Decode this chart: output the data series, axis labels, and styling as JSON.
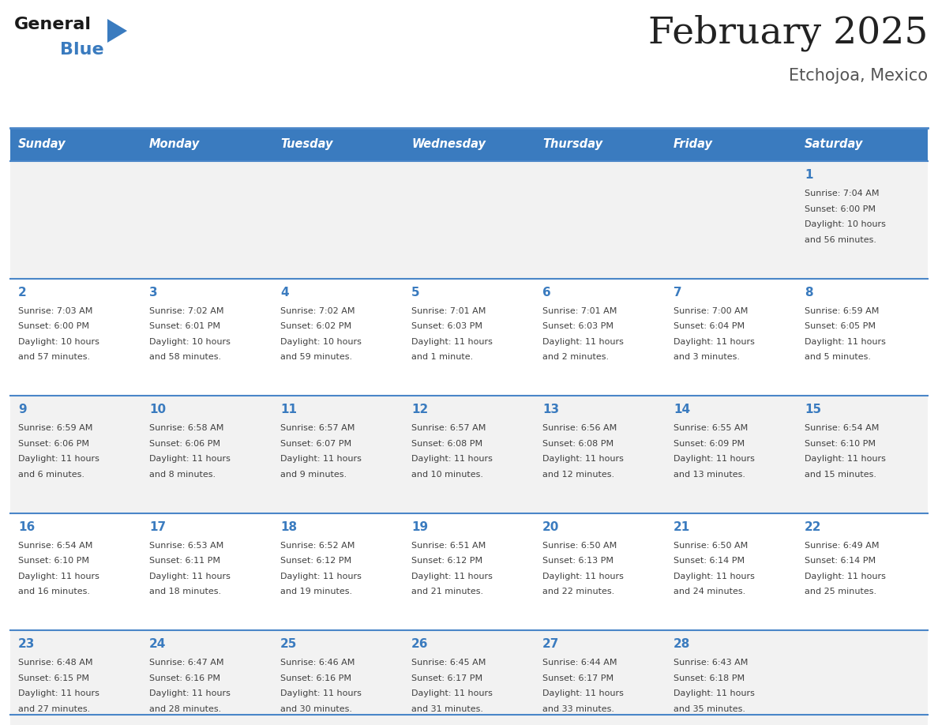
{
  "title": "February 2025",
  "subtitle": "Etchojoa, Mexico",
  "days_of_week": [
    "Sunday",
    "Monday",
    "Tuesday",
    "Wednesday",
    "Thursday",
    "Friday",
    "Saturday"
  ],
  "header_bg": "#3a7bbf",
  "header_text": "#ffffff",
  "cell_bg_odd": "#f2f2f2",
  "cell_bg_even": "#ffffff",
  "day_num_color": "#3a7bbf",
  "text_color": "#404040",
  "line_color": "#4a86c8",
  "title_color": "#222222",
  "subtitle_color": "#555555",
  "calendar_data": [
    [
      null,
      null,
      null,
      null,
      null,
      null,
      {
        "day": 1,
        "sunrise": "7:04 AM",
        "sunset": "6:00 PM",
        "daylight": "10 hours",
        "daylight2": "and 56 minutes."
      }
    ],
    [
      {
        "day": 2,
        "sunrise": "7:03 AM",
        "sunset": "6:00 PM",
        "daylight": "10 hours",
        "daylight2": "and 57 minutes."
      },
      {
        "day": 3,
        "sunrise": "7:02 AM",
        "sunset": "6:01 PM",
        "daylight": "10 hours",
        "daylight2": "and 58 minutes."
      },
      {
        "day": 4,
        "sunrise": "7:02 AM",
        "sunset": "6:02 PM",
        "daylight": "10 hours",
        "daylight2": "and 59 minutes."
      },
      {
        "day": 5,
        "sunrise": "7:01 AM",
        "sunset": "6:03 PM",
        "daylight": "11 hours",
        "daylight2": "and 1 minute."
      },
      {
        "day": 6,
        "sunrise": "7:01 AM",
        "sunset": "6:03 PM",
        "daylight": "11 hours",
        "daylight2": "and 2 minutes."
      },
      {
        "day": 7,
        "sunrise": "7:00 AM",
        "sunset": "6:04 PM",
        "daylight": "11 hours",
        "daylight2": "and 3 minutes."
      },
      {
        "day": 8,
        "sunrise": "6:59 AM",
        "sunset": "6:05 PM",
        "daylight": "11 hours",
        "daylight2": "and 5 minutes."
      }
    ],
    [
      {
        "day": 9,
        "sunrise": "6:59 AM",
        "sunset": "6:06 PM",
        "daylight": "11 hours",
        "daylight2": "and 6 minutes."
      },
      {
        "day": 10,
        "sunrise": "6:58 AM",
        "sunset": "6:06 PM",
        "daylight": "11 hours",
        "daylight2": "and 8 minutes."
      },
      {
        "day": 11,
        "sunrise": "6:57 AM",
        "sunset": "6:07 PM",
        "daylight": "11 hours",
        "daylight2": "and 9 minutes."
      },
      {
        "day": 12,
        "sunrise": "6:57 AM",
        "sunset": "6:08 PM",
        "daylight": "11 hours",
        "daylight2": "and 10 minutes."
      },
      {
        "day": 13,
        "sunrise": "6:56 AM",
        "sunset": "6:08 PM",
        "daylight": "11 hours",
        "daylight2": "and 12 minutes."
      },
      {
        "day": 14,
        "sunrise": "6:55 AM",
        "sunset": "6:09 PM",
        "daylight": "11 hours",
        "daylight2": "and 13 minutes."
      },
      {
        "day": 15,
        "sunrise": "6:54 AM",
        "sunset": "6:10 PM",
        "daylight": "11 hours",
        "daylight2": "and 15 minutes."
      }
    ],
    [
      {
        "day": 16,
        "sunrise": "6:54 AM",
        "sunset": "6:10 PM",
        "daylight": "11 hours",
        "daylight2": "and 16 minutes."
      },
      {
        "day": 17,
        "sunrise": "6:53 AM",
        "sunset": "6:11 PM",
        "daylight": "11 hours",
        "daylight2": "and 18 minutes."
      },
      {
        "day": 18,
        "sunrise": "6:52 AM",
        "sunset": "6:12 PM",
        "daylight": "11 hours",
        "daylight2": "and 19 minutes."
      },
      {
        "day": 19,
        "sunrise": "6:51 AM",
        "sunset": "6:12 PM",
        "daylight": "11 hours",
        "daylight2": "and 21 minutes."
      },
      {
        "day": 20,
        "sunrise": "6:50 AM",
        "sunset": "6:13 PM",
        "daylight": "11 hours",
        "daylight2": "and 22 minutes."
      },
      {
        "day": 21,
        "sunrise": "6:50 AM",
        "sunset": "6:14 PM",
        "daylight": "11 hours",
        "daylight2": "and 24 minutes."
      },
      {
        "day": 22,
        "sunrise": "6:49 AM",
        "sunset": "6:14 PM",
        "daylight": "11 hours",
        "daylight2": "and 25 minutes."
      }
    ],
    [
      {
        "day": 23,
        "sunrise": "6:48 AM",
        "sunset": "6:15 PM",
        "daylight": "11 hours",
        "daylight2": "and 27 minutes."
      },
      {
        "day": 24,
        "sunrise": "6:47 AM",
        "sunset": "6:16 PM",
        "daylight": "11 hours",
        "daylight2": "and 28 minutes."
      },
      {
        "day": 25,
        "sunrise": "6:46 AM",
        "sunset": "6:16 PM",
        "daylight": "11 hours",
        "daylight2": "and 30 minutes."
      },
      {
        "day": 26,
        "sunrise": "6:45 AM",
        "sunset": "6:17 PM",
        "daylight": "11 hours",
        "daylight2": "and 31 minutes."
      },
      {
        "day": 27,
        "sunrise": "6:44 AM",
        "sunset": "6:17 PM",
        "daylight": "11 hours",
        "daylight2": "and 33 minutes."
      },
      {
        "day": 28,
        "sunrise": "6:43 AM",
        "sunset": "6:18 PM",
        "daylight": "11 hours",
        "daylight2": "and 35 minutes."
      },
      null
    ]
  ]
}
